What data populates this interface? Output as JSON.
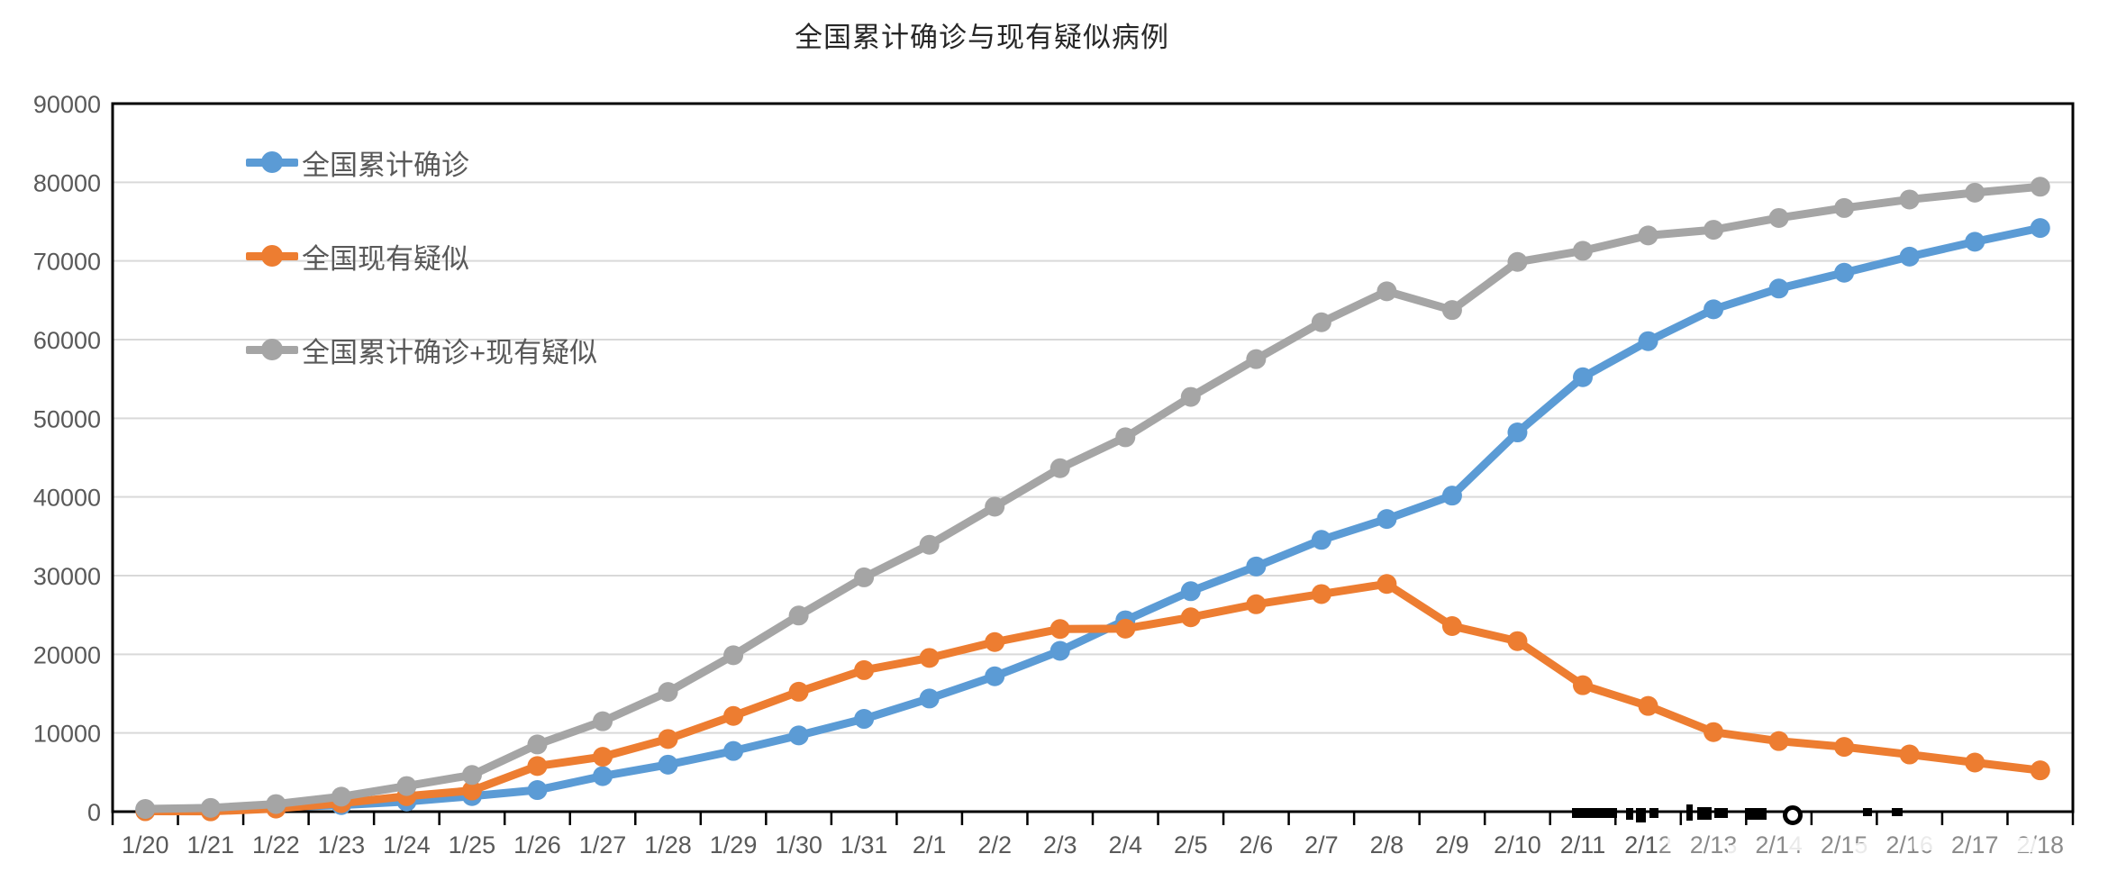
{
  "chart_data": {
    "type": "line",
    "title": "全国累计确诊与现有疑似病例",
    "categories": [
      "1/20",
      "1/21",
      "1/22",
      "1/23",
      "1/24",
      "1/25",
      "1/26",
      "1/27",
      "1/28",
      "1/29",
      "1/30",
      "1/31",
      "2/1",
      "2/2",
      "2/3",
      "2/4",
      "2/5",
      "2/6",
      "2/7",
      "2/8",
      "2/9",
      "2/10",
      "2/11",
      "2/12",
      "2/13",
      "2/14",
      "2/15",
      "2/16",
      "2/17",
      "2/18"
    ],
    "series": [
      {
        "name": "全国累计确诊",
        "color": "#5B9BD5",
        "values": [
          291,
          440,
          571,
          830,
          1287,
          1975,
          2744,
          4515,
          5974,
          7711,
          9692,
          11791,
          14380,
          17205,
          20438,
          24324,
          28018,
          31161,
          34546,
          37198,
          40171,
          48200,
          55220,
          59804,
          63851,
          66492,
          68500,
          70548,
          72436,
          74185
        ]
      },
      {
        "name": "全国现有疑似",
        "color": "#ED7D31",
        "values": [
          54,
          37,
          393,
          1072,
          1965,
          2684,
          5794,
          6973,
          9239,
          12167,
          15238,
          17988,
          19544,
          21558,
          23214,
          23260,
          24702,
          26359,
          27657,
          28942,
          23589,
          21675,
          16067,
          13435,
          10109,
          8969,
          8228,
          7264,
          6242,
          5248
        ]
      },
      {
        "name": "全国累计确诊+现有疑似",
        "color": "#A5A5A5",
        "values": [
          345,
          477,
          964,
          1902,
          3252,
          4659,
          8538,
          11488,
          15213,
          19878,
          24930,
          29779,
          33924,
          38763,
          43652,
          47584,
          52720,
          57520,
          62203,
          66140,
          63760,
          69875,
          71287,
          73239,
          73960,
          75461,
          76728,
          77812,
          78678,
          79433
        ]
      }
    ],
    "y_axis": {
      "min": 0,
      "max": 90000,
      "step": 10000,
      "tick_labels": [
        "0",
        "10000",
        "20000",
        "30000",
        "40000",
        "50000",
        "60000",
        "70000",
        "80000",
        "90000"
      ]
    },
    "x_axis": {
      "tick_labels": [
        "1/20",
        "1/21",
        "1/22",
        "1/23",
        "1/24",
        "1/25",
        "1/26",
        "1/27",
        "1/28",
        "1/29",
        "1/30",
        "1/31",
        "2/1",
        "2/2",
        "2/3",
        "2/4",
        "2/5",
        "2/6",
        "2/7",
        "2/8",
        "2/9",
        "2/10",
        "2/11",
        "2/12",
        "2/13",
        "2/14",
        "2/15",
        "2/16",
        "2/17",
        "2/18"
      ]
    },
    "legend": {
      "position": "top-left-inside"
    },
    "grid": "horizontal",
    "colors": {
      "gridline": "#D9D9D9",
      "axis_text": "#595959",
      "plot_border": "#000000",
      "background": "#FFFFFF"
    }
  }
}
